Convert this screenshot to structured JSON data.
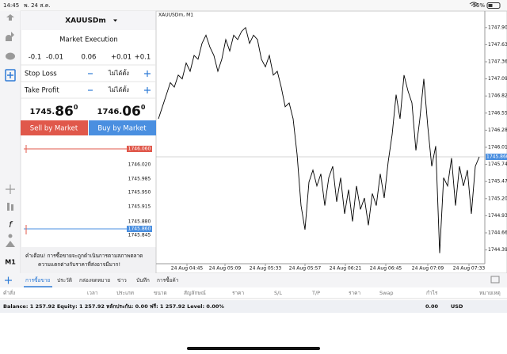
{
  "status_bar": {
    "time": "14:45",
    "date": "พ. 24 ส.ค.",
    "battery": "36%"
  },
  "order_panel": {
    "symbol": "XAUUSDm",
    "execution": "Market Execution",
    "volume_steps": [
      "-0.1",
      "-0.01",
      "0.06",
      "+0.01",
      "+0.1"
    ],
    "stop_loss": {
      "label": "Stop Loss",
      "placeholder": "ไม่ได้ตั้ง"
    },
    "take_profit": {
      "label": "Take Profit",
      "placeholder": "ไม่ได้ตั้ง"
    },
    "bid": {
      "prefix": "1745.",
      "big": "86",
      "sup": "0"
    },
    "ask": {
      "prefix": "1746.",
      "big": "06",
      "sup": "0"
    },
    "sell_button": "Sell by Market",
    "buy_button": "Buy by Market",
    "tick_prices": [
      "1746.060",
      "1746.020",
      "1745.985",
      "1745.950",
      "1745.915",
      "1745.880",
      "1745.860",
      "1745.845"
    ],
    "warning": [
      "คำเตือน! การซื้อขายจะถูกดำเนินการตามสภาพตลาด",
      "ความแตกต่างกับราคาที่ส่งอาจมีมาก!"
    ]
  },
  "sidebar": {
    "timeframe": "M1"
  },
  "chart_data": {
    "type": "line",
    "title": "XAUUSDm, M1",
    "color": "#000000",
    "values": [
      1746.46,
      1746.65,
      1746.84,
      1747.03,
      1746.96,
      1747.15,
      1747.09,
      1747.34,
      1747.21,
      1747.46,
      1747.4,
      1747.65,
      1747.78,
      1747.59,
      1747.46,
      1747.21,
      1747.4,
      1747.71,
      1747.53,
      1747.78,
      1747.71,
      1747.84,
      1747.9,
      1747.65,
      1747.78,
      1747.71,
      1747.4,
      1747.28,
      1747.46,
      1747.15,
      1747.21,
      1746.96,
      1746.65,
      1746.71,
      1746.46,
      1745.9,
      1745.09,
      1744.71,
      1745.46,
      1745.65,
      1745.4,
      1745.59,
      1745.09,
      1745.53,
      1745.71,
      1745.15,
      1745.53,
      1744.96,
      1745.34,
      1744.84,
      1745.4,
      1745.03,
      1745.21,
      1744.78,
      1745.28,
      1745.09,
      1745.59,
      1745.21,
      1745.78,
      1746.21,
      1746.84,
      1746.46,
      1747.15,
      1746.9,
      1746.71,
      1745.96,
      1746.46,
      1747.09,
      1746.34,
      1745.71,
      1746.03,
      1744.34,
      1745.53,
      1745.4,
      1745.84,
      1745.09,
      1745.71,
      1745.4,
      1745.65,
      1744.96,
      1745.71,
      1745.86
    ],
    "ylim": [
      1744.21,
      1748.16
    ],
    "yticks": [
      {
        "value": 1747.9,
        "label": "1747.900"
      },
      {
        "value": 1747.63,
        "label": "1747.630"
      },
      {
        "value": 1747.36,
        "label": "1747.360"
      },
      {
        "value": 1747.09,
        "label": "1747.090"
      },
      {
        "value": 1746.82,
        "label": "1746.820"
      },
      {
        "value": 1746.55,
        "label": "1746.550"
      },
      {
        "value": 1746.28,
        "label": "1746.280"
      },
      {
        "value": 1746.01,
        "label": "1746.010"
      },
      {
        "value": 1745.74,
        "label": "1745.740"
      },
      {
        "value": 1745.47,
        "label": "1745.470"
      },
      {
        "value": 1745.2,
        "label": "1745.200"
      },
      {
        "value": 1744.93,
        "label": "1744.930"
      },
      {
        "value": 1744.66,
        "label": "1744.660"
      },
      {
        "value": 1744.39,
        "label": "1744.390"
      }
    ],
    "xticks": [
      {
        "value": 7.2,
        "label": "24 Aug 04:45"
      },
      {
        "value": 16.8,
        "label": "24 Aug 05:09"
      },
      {
        "value": 27,
        "label": "24 Aug 05:33"
      },
      {
        "value": 37,
        "label": "24 Aug 05:57"
      },
      {
        "value": 47.2,
        "label": "24 Aug 06:21"
      },
      {
        "value": 57.4,
        "label": "24 Aug 06:45"
      },
      {
        "value": 68,
        "label": "24 Aug 07:09"
      },
      {
        "value": 78.4,
        "label": "24 Aug 07:33"
      }
    ],
    "current_price": {
      "value": 1745.86,
      "label": "1745.860"
    }
  },
  "tabs": [
    "การซื้อขาย",
    "ประวัติ",
    "กล่องจดหมาย",
    "ข่าว",
    "บันทึก",
    "การซื้อค้า"
  ],
  "columns": [
    "คำสั่ง",
    "เวลา",
    "ประเภท",
    "ขนาด",
    "สัญลักษณ์",
    "ราคา",
    "S/L",
    "T/P",
    "ราคา",
    "Swap",
    "กำไร",
    "หมายเหตุ"
  ],
  "account": {
    "summary": "Balance: 1 257.92 Equity: 1 257.92 หลักประกัน: 0.00 ฟรี: 1 257.92 Level: 0.00%",
    "total": "0.00",
    "currency": "USD"
  }
}
